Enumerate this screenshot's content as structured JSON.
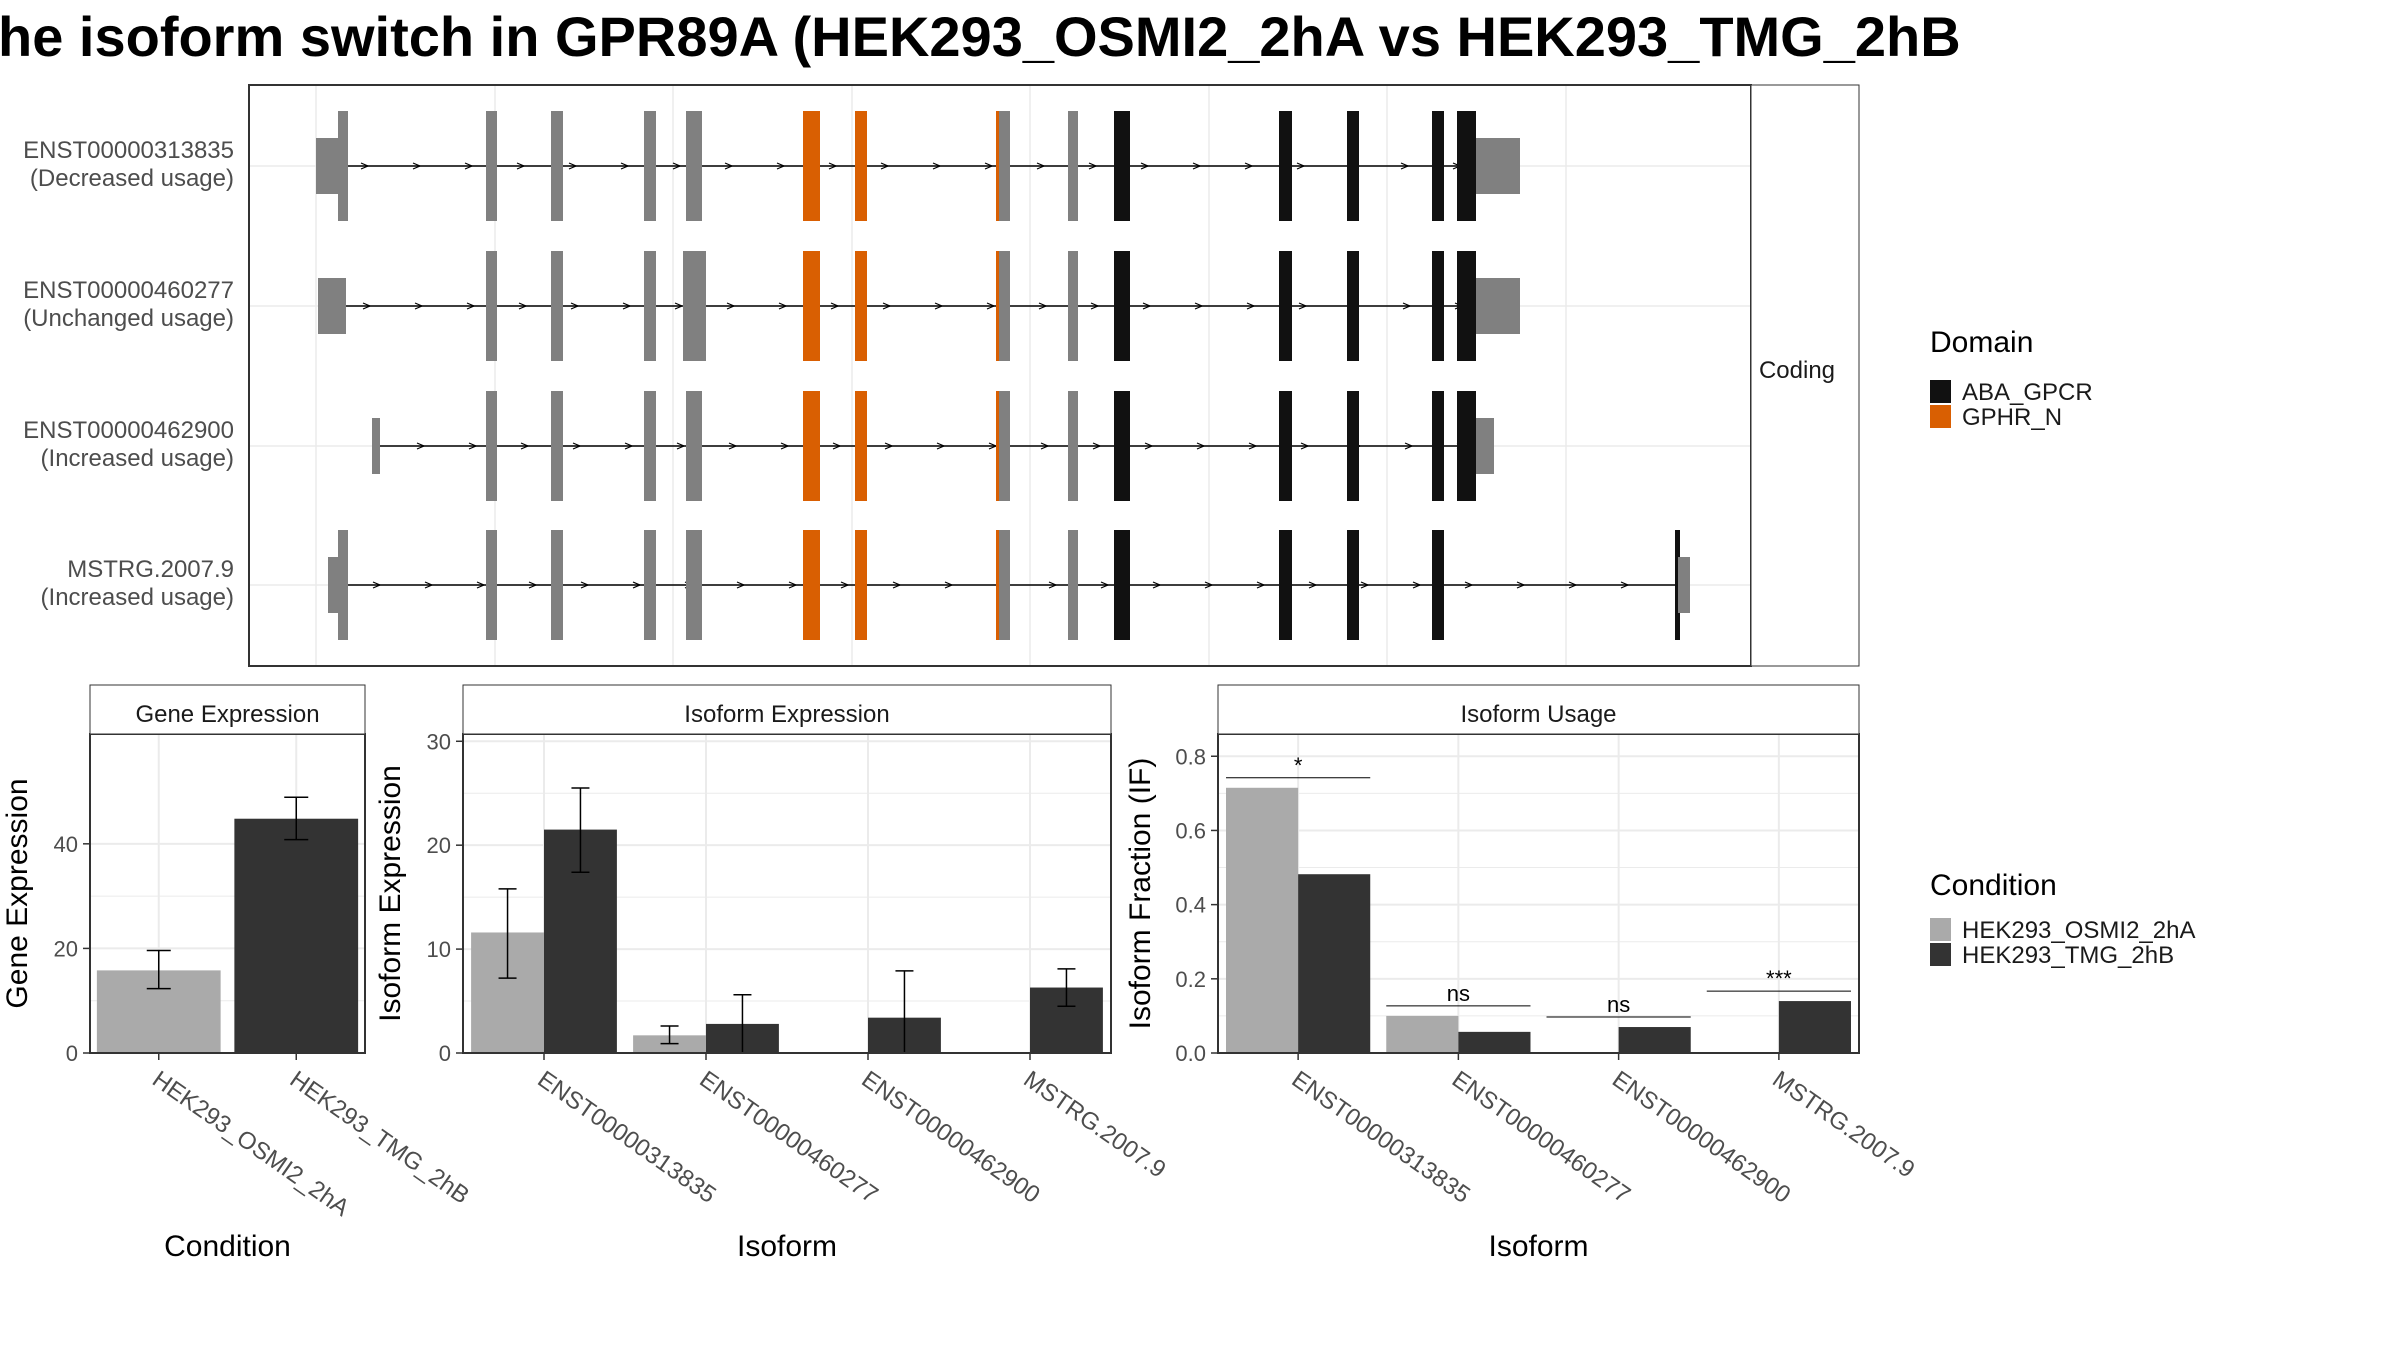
{
  "title": "he isoform switch in GPR89A (HEK293_OSMI2_2hA vs HEK293_TMG_2hB",
  "colors": {
    "cond_a": "#aaaaaa",
    "cond_b": "#333333",
    "aba_gpcr": "#111111",
    "gphr_n": "#d95f02",
    "non_domain_exon": "#808080",
    "grid": "#ebebeb",
    "panel_border": "#333333",
    "strip_fill": "#ffffff"
  },
  "transcripts": {
    "facet_label": "Coding",
    "isoforms": [
      {
        "id": "ENST00000313835",
        "usage": "(Decreased usage)"
      },
      {
        "id": "ENST00000460277",
        "usage": "(Unchanged usage)"
      },
      {
        "id": "ENST00000462900",
        "usage": "(Increased usage)"
      },
      {
        "id": "MSTRG.2007.9",
        "usage": "(Increased usage)"
      }
    ]
  },
  "legend_domain": {
    "title": "Domain",
    "items": [
      {
        "label": "ABA_GPCR",
        "color": "#111111"
      },
      {
        "label": "GPHR_N",
        "color": "#d95f02"
      }
    ]
  },
  "legend_condition": {
    "title": "Condition",
    "items": [
      {
        "label": "HEK293_OSMI2_2hA",
        "color": "#aaaaaa"
      },
      {
        "label": "HEK293_TMG_2hB",
        "color": "#333333"
      }
    ]
  },
  "chart_data": [
    {
      "type": "bar",
      "title": "Gene Expression",
      "xlabel": "Condition",
      "ylabel": "Gene Expression",
      "categories": [
        "HEK293_OSMI2_2hA",
        "HEK293_TMG_2hB"
      ],
      "values": [
        15.8,
        44.8
      ],
      "errors": [
        [
          12.3,
          19.6
        ],
        [
          40.8,
          48.9
        ]
      ],
      "ylim": [
        0,
        61
      ],
      "yticks": [
        "0",
        "20",
        "40"
      ],
      "ytick_values": [
        0,
        20,
        40
      ]
    },
    {
      "type": "bar",
      "title": "Isoform Expression",
      "xlabel": "Isoform",
      "ylabel": "Isoform Expression",
      "categories": [
        "ENST00000313835",
        "ENST00000460277",
        "ENST00000462900",
        "MSTRG.2007.9"
      ],
      "series": [
        {
          "name": "HEK293_OSMI2_2hA",
          "values": [
            11.6,
            1.7,
            0.0,
            0.0
          ],
          "errors": [
            [
              7.2,
              15.8
            ],
            [
              0.9,
              2.6
            ],
            [
              0.0,
              0.0
            ],
            [
              0.0,
              0.0
            ]
          ]
        },
        {
          "name": "HEK293_TMG_2hB",
          "values": [
            21.5,
            2.8,
            3.4,
            6.3
          ],
          "errors": [
            [
              17.4,
              25.5
            ],
            [
              0.0,
              5.6
            ],
            [
              0.0,
              7.9
            ],
            [
              4.5,
              8.1
            ]
          ]
        }
      ],
      "ylim": [
        0,
        30.7
      ],
      "yticks": [
        "0",
        "10",
        "20",
        "30"
      ],
      "ytick_values": [
        0,
        10,
        20,
        30
      ]
    },
    {
      "type": "bar",
      "title": "Isoform Usage",
      "xlabel": "Isoform",
      "ylabel": "Isoform Fraction (IF)",
      "categories": [
        "ENST00000313835",
        "ENST00000460277",
        "ENST00000462900",
        "MSTRG.2007.9"
      ],
      "series": [
        {
          "name": "HEK293_OSMI2_2hA",
          "values": [
            0.715,
            0.1,
            0.0,
            0.0
          ]
        },
        {
          "name": "HEK293_TMG_2hB",
          "values": [
            0.482,
            0.057,
            0.07,
            0.14
          ]
        }
      ],
      "significance": [
        "*",
        "ns",
        "ns",
        "***"
      ],
      "ylim": [
        0,
        0.86
      ],
      "yticks": [
        "0.0",
        "0.2",
        "0.4",
        "0.6",
        "0.8"
      ],
      "ytick_values": [
        0.0,
        0.2,
        0.4,
        0.6,
        0.8
      ]
    }
  ]
}
